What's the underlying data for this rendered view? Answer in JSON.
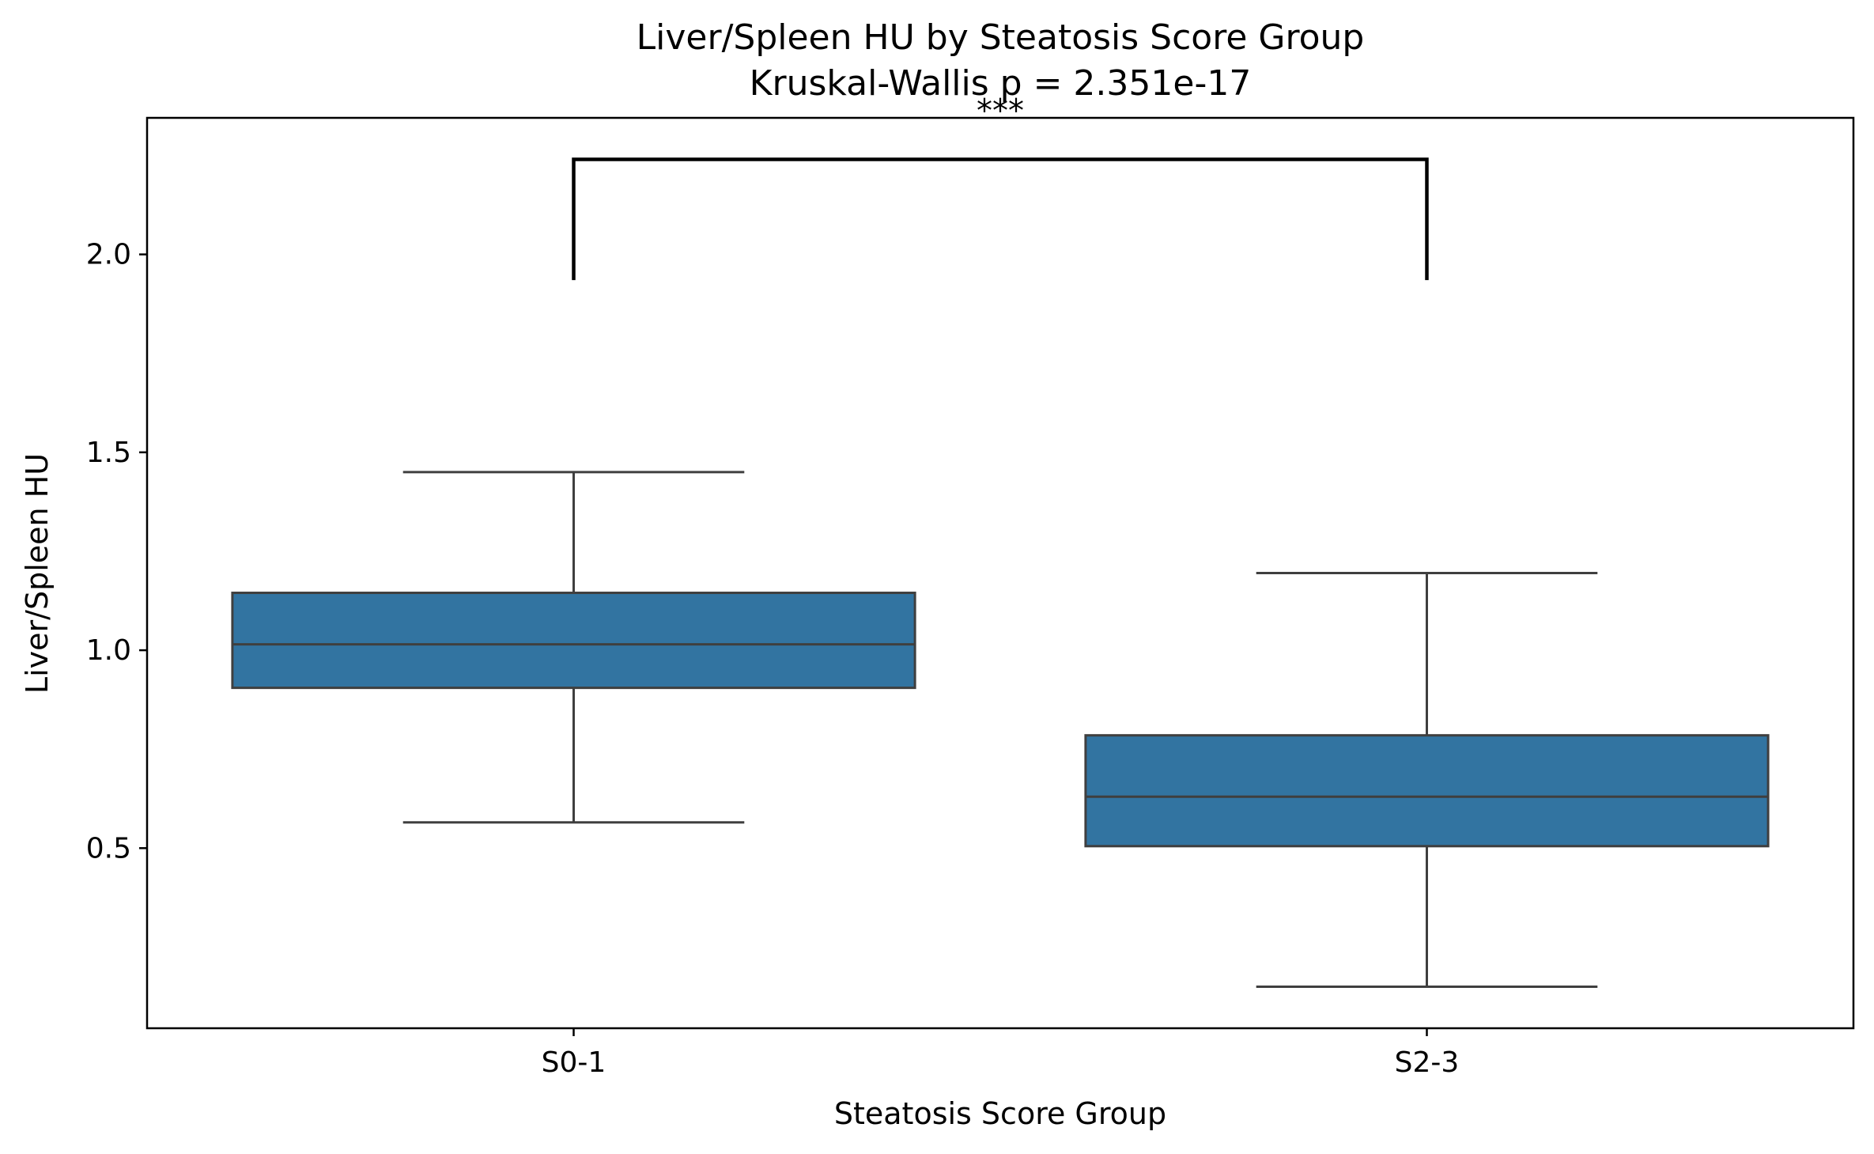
{
  "chart_data": {
    "type": "box",
    "title": "Liver/Spleen HU by Steatosis Score Group",
    "subtitle": "Kruskal-Wallis p = 2.351e-17",
    "xlabel": "Steatosis Score Group",
    "ylabel": "Liver/Spleen HU",
    "categories": [
      "S0-1",
      "S2-3"
    ],
    "yticks": [
      "0.5",
      "1.0",
      "1.5",
      "2.0"
    ],
    "ylim": [
      0.045,
      2.345
    ],
    "grid": false,
    "boxes": [
      {
        "category": "S0-1",
        "whisker_low": 0.565,
        "q1": 0.905,
        "median": 1.015,
        "q3": 1.145,
        "whisker_high": 1.45
      },
      {
        "category": "S2-3",
        "whisker_low": 0.15,
        "q1": 0.505,
        "median": 0.63,
        "q3": 0.785,
        "whisker_high": 1.195
      }
    ],
    "significance": {
      "from": "S0-1",
      "to": "S2-3",
      "bar_y": 2.24,
      "tip_y": 1.935,
      "label": "***"
    },
    "colors": {
      "box_fill": "#3274a1",
      "box_edge": "#3f3f3f",
      "axis": "#000000"
    }
  }
}
